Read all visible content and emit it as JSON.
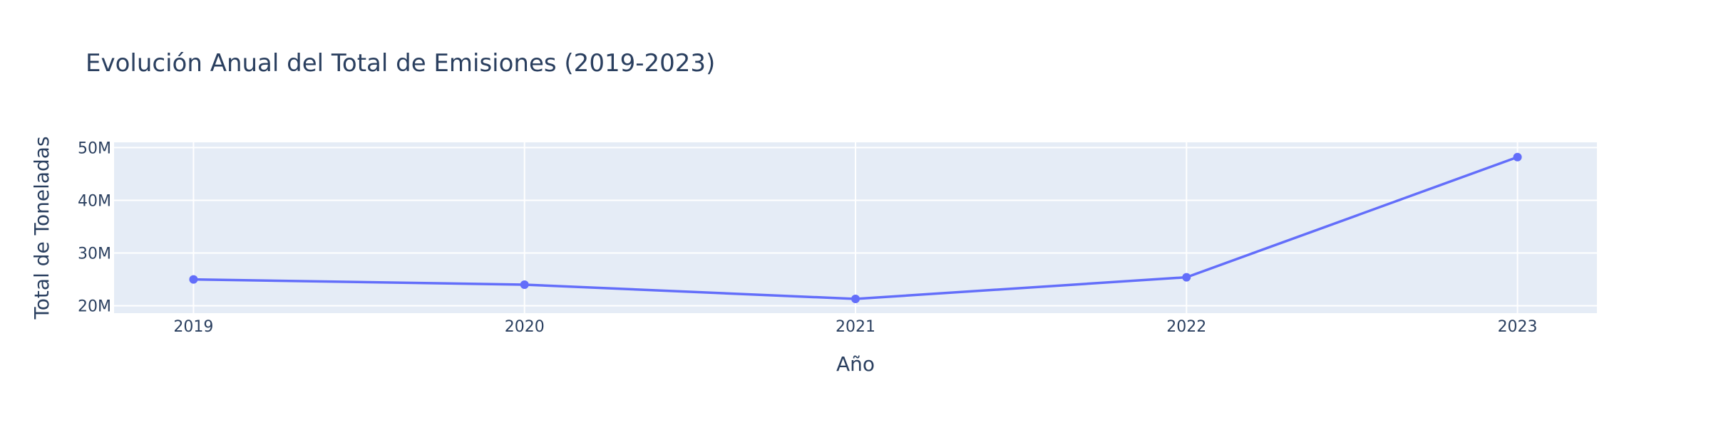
{
  "chart_data": {
    "type": "line",
    "title": "Evolución Anual del Total de Emisiones (2019-2023)",
    "xlabel": "Año",
    "ylabel": "Total de Toneladas",
    "x": [
      2019,
      2020,
      2021,
      2022,
      2023
    ],
    "x_tick_labels": [
      "2019",
      "2020",
      "2021",
      "2022",
      "2023"
    ],
    "xlim": [
      2018.76,
      2023.24
    ],
    "series": [
      {
        "values": [
          25000000,
          24000000,
          21300000,
          25400000,
          48200000
        ]
      }
    ],
    "ylim": [
      18600000,
      51000000
    ],
    "y_ticks": [
      20000000,
      30000000,
      40000000,
      50000000
    ],
    "y_tick_labels": [
      "20M",
      "30M",
      "40M",
      "50M"
    ],
    "grid": true,
    "legend": "none",
    "colors": {
      "line": "#636efa",
      "plot_bg": "#e5ecf6",
      "grid": "#ffffff",
      "text": "#2a3f5f"
    }
  }
}
